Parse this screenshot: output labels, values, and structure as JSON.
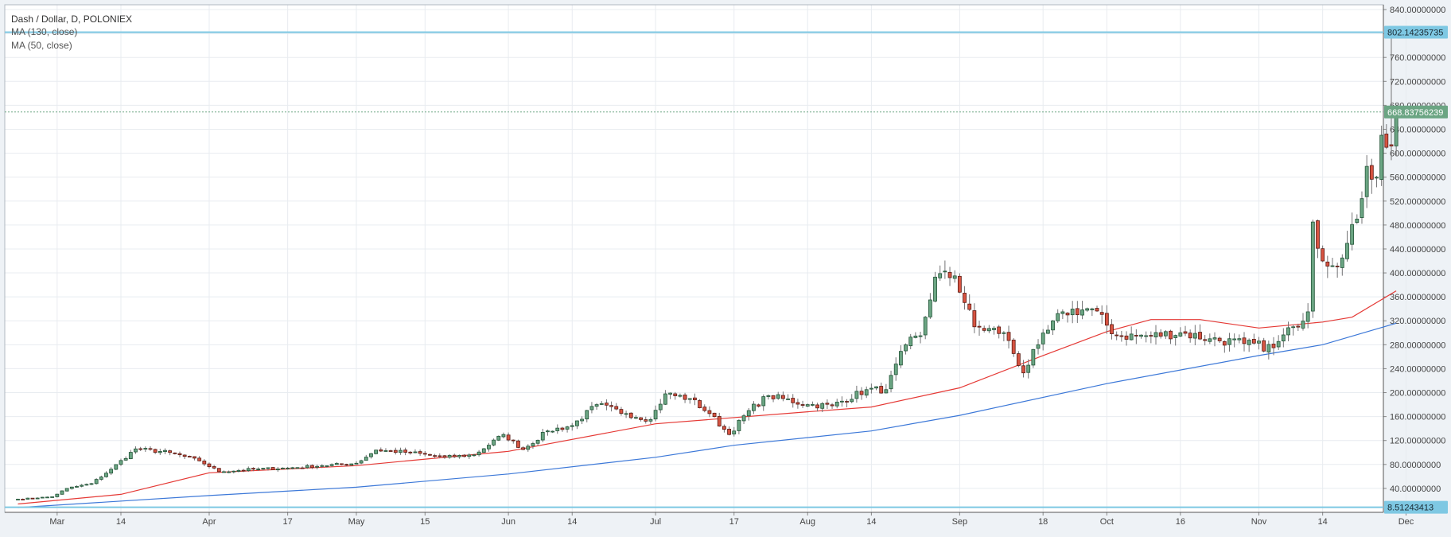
{
  "legend": {
    "title": "Dash / Dollar, D, POLONIEX",
    "ma1": "MA (130, close)",
    "ma2": "MA (50, close)"
  },
  "colors": {
    "background": "#ffffff",
    "grid": "#e8ecf0",
    "up_fill": "#6ba583",
    "up_border": "#225437",
    "down_fill": "#d75442",
    "down_border": "#5b1a13",
    "wick": "#737375",
    "ma130": "#3c78d8",
    "ma50": "#e53935",
    "hline": "#7ec8e3",
    "price_badge": "#6ba583"
  },
  "chart_data": {
    "type": "candlestick",
    "title": "Dash / Dollar, D, POLONIEX",
    "ylim": [
      0,
      848
    ],
    "yticks": [
      40,
      80,
      120,
      160,
      200,
      240,
      280,
      320,
      360,
      400,
      440,
      480,
      520,
      560,
      600,
      640,
      680,
      720,
      760,
      800,
      840
    ],
    "ytick_labels": [
      "40.00000000",
      "80.00000000",
      "120.00000000",
      "160.00000000",
      "200.00000000",
      "240.00000000",
      "280.00000000",
      "320.00000000",
      "360.00000000",
      "400.00000000",
      "440.00000000",
      "480.00000000",
      "520.00000000",
      "560.00000000",
      "600.00000000",
      "640.00000000",
      "680.00000000",
      "720.00000000",
      "760.00000000",
      "800.00000000",
      "840.00000000"
    ],
    "x_start": "2017-02-21",
    "x_end": "2017-12-13",
    "xticks": [
      {
        "date": "2017-03-01",
        "label": "Mar"
      },
      {
        "date": "2017-03-14",
        "label": "14"
      },
      {
        "date": "2017-04-01",
        "label": "Apr"
      },
      {
        "date": "2017-04-17",
        "label": "17"
      },
      {
        "date": "2017-05-01",
        "label": "May"
      },
      {
        "date": "2017-05-15",
        "label": "15"
      },
      {
        "date": "2017-06-01",
        "label": "Jun"
      },
      {
        "date": "2017-06-14",
        "label": "14"
      },
      {
        "date": "2017-07-01",
        "label": "Jul"
      },
      {
        "date": "2017-07-17",
        "label": "17"
      },
      {
        "date": "2017-08-01",
        "label": "Aug"
      },
      {
        "date": "2017-08-14",
        "label": "14"
      },
      {
        "date": "2017-09-01",
        "label": "Sep"
      },
      {
        "date": "2017-09-18",
        "label": "18"
      },
      {
        "date": "2017-10-01",
        "label": "Oct"
      },
      {
        "date": "2017-10-16",
        "label": "16"
      },
      {
        "date": "2017-11-01",
        "label": "Nov"
      },
      {
        "date": "2017-11-14",
        "label": "14"
      },
      {
        "date": "2017-12-01",
        "label": "Dec"
      }
    ],
    "horizontal_lines": [
      {
        "value": 802.14235735,
        "label": "802.14235735"
      },
      {
        "value": 8.51243413,
        "label": "8.51243413"
      }
    ],
    "last_price": {
      "value": 668.83756239,
      "label": "668.83756239"
    },
    "anchors": [
      {
        "date": "2017-02-21",
        "close": 22
      },
      {
        "date": "2017-02-28",
        "close": 26
      },
      {
        "date": "2017-03-03",
        "close": 40
      },
      {
        "date": "2017-03-08",
        "close": 48
      },
      {
        "date": "2017-03-12",
        "close": 72
      },
      {
        "date": "2017-03-17",
        "close": 106
      },
      {
        "date": "2017-03-24",
        "close": 100
      },
      {
        "date": "2017-03-30",
        "close": 86
      },
      {
        "date": "2017-04-03",
        "close": 68
      },
      {
        "date": "2017-04-10",
        "close": 72
      },
      {
        "date": "2017-04-17",
        "close": 74
      },
      {
        "date": "2017-04-24",
        "close": 78
      },
      {
        "date": "2017-05-01",
        "close": 82
      },
      {
        "date": "2017-05-05",
        "close": 104
      },
      {
        "date": "2017-05-12",
        "close": 100
      },
      {
        "date": "2017-05-19",
        "close": 92
      },
      {
        "date": "2017-05-25",
        "close": 96
      },
      {
        "date": "2017-05-31",
        "close": 130
      },
      {
        "date": "2017-06-04",
        "close": 105
      },
      {
        "date": "2017-06-09",
        "close": 136
      },
      {
        "date": "2017-06-14",
        "close": 145
      },
      {
        "date": "2017-06-19",
        "close": 180
      },
      {
        "date": "2017-06-25",
        "close": 165
      },
      {
        "date": "2017-06-30",
        "close": 155
      },
      {
        "date": "2017-07-03",
        "close": 198
      },
      {
        "date": "2017-07-08",
        "close": 190
      },
      {
        "date": "2017-07-12",
        "close": 165
      },
      {
        "date": "2017-07-16",
        "close": 130
      },
      {
        "date": "2017-07-20",
        "close": 170
      },
      {
        "date": "2017-07-24",
        "close": 195
      },
      {
        "date": "2017-08-01",
        "close": 180
      },
      {
        "date": "2017-08-06",
        "close": 178
      },
      {
        "date": "2017-08-13",
        "close": 205
      },
      {
        "date": "2017-08-17",
        "close": 205
      },
      {
        "date": "2017-08-21",
        "close": 280
      },
      {
        "date": "2017-08-24",
        "close": 295
      },
      {
        "date": "2017-08-27",
        "close": 393
      },
      {
        "date": "2017-08-31",
        "close": 395
      },
      {
        "date": "2017-09-04",
        "close": 310
      },
      {
        "date": "2017-09-10",
        "close": 300
      },
      {
        "date": "2017-09-14",
        "close": 233
      },
      {
        "date": "2017-09-17",
        "close": 280
      },
      {
        "date": "2017-09-22",
        "close": 335
      },
      {
        "date": "2017-09-28",
        "close": 340
      },
      {
        "date": "2017-10-03",
        "close": 295
      },
      {
        "date": "2017-10-10",
        "close": 295
      },
      {
        "date": "2017-10-16",
        "close": 300
      },
      {
        "date": "2017-10-22",
        "close": 290
      },
      {
        "date": "2017-10-29",
        "close": 282
      },
      {
        "date": "2017-11-04",
        "close": 275
      },
      {
        "date": "2017-11-08",
        "close": 310
      },
      {
        "date": "2017-11-11",
        "close": 335
      },
      {
        "date": "2017-11-12",
        "close": 485
      },
      {
        "date": "2017-11-14",
        "close": 420
      },
      {
        "date": "2017-11-18",
        "close": 425
      },
      {
        "date": "2017-11-21",
        "close": 490
      },
      {
        "date": "2017-11-23",
        "close": 578
      },
      {
        "date": "2017-11-25",
        "close": 560
      },
      {
        "date": "2017-11-26",
        "close": 630
      },
      {
        "date": "2017-11-28",
        "close": 612
      },
      {
        "date": "2017-11-29",
        "close": 668
      }
    ],
    "ma50_points": [
      {
        "date": "2017-02-21",
        "value": 14
      },
      {
        "date": "2017-03-14",
        "value": 30
      },
      {
        "date": "2017-04-01",
        "value": 66
      },
      {
        "date": "2017-05-01",
        "value": 78
      },
      {
        "date": "2017-06-01",
        "value": 102
      },
      {
        "date": "2017-07-01",
        "value": 148
      },
      {
        "date": "2017-08-01",
        "value": 168
      },
      {
        "date": "2017-08-14",
        "value": 176
      },
      {
        "date": "2017-09-01",
        "value": 208
      },
      {
        "date": "2017-09-18",
        "value": 262
      },
      {
        "date": "2017-10-01",
        "value": 302
      },
      {
        "date": "2017-10-10",
        "value": 322
      },
      {
        "date": "2017-10-20",
        "value": 322
      },
      {
        "date": "2017-11-01",
        "value": 308
      },
      {
        "date": "2017-11-14",
        "value": 318
      },
      {
        "date": "2017-11-20",
        "value": 326
      },
      {
        "date": "2017-11-29",
        "value": 370
      }
    ],
    "ma130_points": [
      {
        "date": "2017-02-21",
        "value": 8
      },
      {
        "date": "2017-04-01",
        "value": 28
      },
      {
        "date": "2017-05-01",
        "value": 42
      },
      {
        "date": "2017-06-01",
        "value": 64
      },
      {
        "date": "2017-07-01",
        "value": 92
      },
      {
        "date": "2017-07-17",
        "value": 112
      },
      {
        "date": "2017-08-14",
        "value": 136
      },
      {
        "date": "2017-09-01",
        "value": 162
      },
      {
        "date": "2017-10-01",
        "value": 215
      },
      {
        "date": "2017-11-01",
        "value": 262
      },
      {
        "date": "2017-11-14",
        "value": 280
      },
      {
        "date": "2017-11-29",
        "value": 316
      }
    ]
  }
}
